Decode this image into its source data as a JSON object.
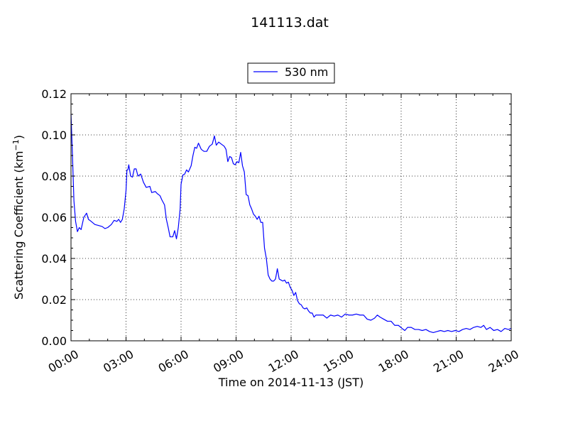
{
  "chart_data": {
    "type": "line",
    "title": "141113.dat",
    "xlabel": "Time on 2014-11-13 (JST)",
    "ylabel": "Scattering Coefficient (km",
    "ylabel_superscript": "−1",
    "ylabel_suffix": ")",
    "x_unit": "hours",
    "xlim": [
      0,
      24
    ],
    "ylim": [
      0,
      0.12
    ],
    "x_ticks": [
      0,
      3,
      6,
      9,
      12,
      15,
      18,
      21,
      24
    ],
    "x_tick_labels": [
      "00:00",
      "03:00",
      "06:00",
      "09:00",
      "12:00",
      "15:00",
      "18:00",
      "21:00",
      "24:00"
    ],
    "y_ticks": [
      0,
      0.02,
      0.04,
      0.06,
      0.08,
      0.1,
      0.12
    ],
    "y_tick_labels": [
      "0.00",
      "0.02",
      "0.04",
      "0.06",
      "0.08",
      "0.10",
      "0.12"
    ],
    "grid": true,
    "legend_position": "top-center-outside",
    "series": [
      {
        "name": "530 nm",
        "color": "#0000ff",
        "points": [
          [
            0.0,
            0.11
          ],
          [
            0.08,
            0.09
          ],
          [
            0.16,
            0.068
          ],
          [
            0.25,
            0.058
          ],
          [
            0.35,
            0.053
          ],
          [
            0.45,
            0.055
          ],
          [
            0.55,
            0.054
          ],
          [
            0.7,
            0.06
          ],
          [
            0.85,
            0.062
          ],
          [
            0.95,
            0.059
          ],
          [
            1.1,
            0.058
          ],
          [
            1.3,
            0.0565
          ],
          [
            1.5,
            0.056
          ],
          [
            1.7,
            0.0555
          ],
          [
            1.85,
            0.0545
          ],
          [
            2.0,
            0.055
          ],
          [
            2.2,
            0.0565
          ],
          [
            2.35,
            0.0585
          ],
          [
            2.5,
            0.058
          ],
          [
            2.6,
            0.059
          ],
          [
            2.7,
            0.0575
          ],
          [
            2.8,
            0.059
          ],
          [
            2.9,
            0.064
          ],
          [
            3.0,
            0.073
          ],
          [
            3.05,
            0.083
          ],
          [
            3.1,
            0.083
          ],
          [
            3.15,
            0.0855
          ],
          [
            3.25,
            0.08
          ],
          [
            3.35,
            0.0795
          ],
          [
            3.45,
            0.0835
          ],
          [
            3.55,
            0.0835
          ],
          [
            3.65,
            0.08
          ],
          [
            3.8,
            0.081
          ],
          [
            3.95,
            0.077
          ],
          [
            4.1,
            0.0745
          ],
          [
            4.3,
            0.075
          ],
          [
            4.4,
            0.072
          ],
          [
            4.6,
            0.0725
          ],
          [
            4.7,
            0.0715
          ],
          [
            4.85,
            0.0705
          ],
          [
            4.95,
            0.0685
          ],
          [
            5.1,
            0.066
          ],
          [
            5.2,
            0.059
          ],
          [
            5.3,
            0.055
          ],
          [
            5.4,
            0.0505
          ],
          [
            5.55,
            0.0505
          ],
          [
            5.65,
            0.0535
          ],
          [
            5.75,
            0.0495
          ],
          [
            5.85,
            0.055
          ],
          [
            5.95,
            0.064
          ],
          [
            6.0,
            0.076
          ],
          [
            6.1,
            0.0805
          ],
          [
            6.2,
            0.081
          ],
          [
            6.3,
            0.083
          ],
          [
            6.4,
            0.082
          ],
          [
            6.55,
            0.085
          ],
          [
            6.65,
            0.09
          ],
          [
            6.75,
            0.094
          ],
          [
            6.85,
            0.0935
          ],
          [
            6.95,
            0.096
          ],
          [
            7.1,
            0.093
          ],
          [
            7.25,
            0.092
          ],
          [
            7.4,
            0.092
          ],
          [
            7.55,
            0.0945
          ],
          [
            7.7,
            0.0955
          ],
          [
            7.82,
            0.0995
          ],
          [
            7.92,
            0.095
          ],
          [
            8.05,
            0.0965
          ],
          [
            8.2,
            0.0955
          ],
          [
            8.35,
            0.0945
          ],
          [
            8.45,
            0.093
          ],
          [
            8.55,
            0.087
          ],
          [
            8.65,
            0.0895
          ],
          [
            8.75,
            0.089
          ],
          [
            8.85,
            0.086
          ],
          [
            8.95,
            0.0855
          ],
          [
            9.05,
            0.087
          ],
          [
            9.15,
            0.0865
          ],
          [
            9.25,
            0.0915
          ],
          [
            9.35,
            0.085
          ],
          [
            9.45,
            0.082
          ],
          [
            9.55,
            0.071
          ],
          [
            9.65,
            0.0705
          ],
          [
            9.75,
            0.066
          ],
          [
            9.85,
            0.064
          ],
          [
            9.95,
            0.0615
          ],
          [
            10.05,
            0.0605
          ],
          [
            10.15,
            0.059
          ],
          [
            10.25,
            0.0605
          ],
          [
            10.35,
            0.0575
          ],
          [
            10.45,
            0.0575
          ],
          [
            10.55,
            0.045
          ],
          [
            10.65,
            0.04
          ],
          [
            10.75,
            0.032
          ],
          [
            10.85,
            0.03
          ],
          [
            10.95,
            0.029
          ],
          [
            11.05,
            0.029
          ],
          [
            11.15,
            0.03
          ],
          [
            11.25,
            0.035
          ],
          [
            11.35,
            0.03
          ],
          [
            11.45,
            0.0295
          ],
          [
            11.55,
            0.029
          ],
          [
            11.65,
            0.0295
          ],
          [
            11.75,
            0.028
          ],
          [
            11.85,
            0.0285
          ],
          [
            11.95,
            0.026
          ],
          [
            12.05,
            0.0245
          ],
          [
            12.15,
            0.022
          ],
          [
            12.25,
            0.0235
          ],
          [
            12.35,
            0.0195
          ],
          [
            12.45,
            0.018
          ],
          [
            12.55,
            0.0175
          ],
          [
            12.65,
            0.016
          ],
          [
            12.75,
            0.0155
          ],
          [
            12.85,
            0.016
          ],
          [
            12.95,
            0.0145
          ],
          [
            13.05,
            0.0135
          ],
          [
            13.15,
            0.0135
          ],
          [
            13.25,
            0.0115
          ],
          [
            13.35,
            0.0125
          ],
          [
            13.55,
            0.0125
          ],
          [
            13.75,
            0.0125
          ],
          [
            13.95,
            0.011
          ],
          [
            14.15,
            0.0125
          ],
          [
            14.35,
            0.012
          ],
          [
            14.55,
            0.0125
          ],
          [
            14.75,
            0.0115
          ],
          [
            14.95,
            0.013
          ],
          [
            15.15,
            0.0125
          ],
          [
            15.35,
            0.0125
          ],
          [
            15.55,
            0.013
          ],
          [
            15.75,
            0.0125
          ],
          [
            15.95,
            0.0125
          ],
          [
            16.15,
            0.0105
          ],
          [
            16.35,
            0.01
          ],
          [
            16.55,
            0.011
          ],
          [
            16.7,
            0.0125
          ],
          [
            16.85,
            0.0115
          ],
          [
            17.05,
            0.0105
          ],
          [
            17.25,
            0.0095
          ],
          [
            17.45,
            0.0095
          ],
          [
            17.65,
            0.0075
          ],
          [
            17.85,
            0.0075
          ],
          [
            18.05,
            0.006
          ],
          [
            18.2,
            0.005
          ],
          [
            18.35,
            0.0065
          ],
          [
            18.55,
            0.0065
          ],
          [
            18.75,
            0.0055
          ],
          [
            18.95,
            0.0055
          ],
          [
            19.15,
            0.005
          ],
          [
            19.35,
            0.0055
          ],
          [
            19.55,
            0.0045
          ],
          [
            19.75,
            0.004
          ],
          [
            19.95,
            0.0045
          ],
          [
            20.15,
            0.005
          ],
          [
            20.35,
            0.0045
          ],
          [
            20.55,
            0.005
          ],
          [
            20.75,
            0.0045
          ],
          [
            20.95,
            0.005
          ],
          [
            21.15,
            0.0045
          ],
          [
            21.35,
            0.0055
          ],
          [
            21.55,
            0.006
          ],
          [
            21.75,
            0.0055
          ],
          [
            21.95,
            0.0065
          ],
          [
            22.15,
            0.007
          ],
          [
            22.35,
            0.0065
          ],
          [
            22.5,
            0.0075
          ],
          [
            22.65,
            0.0055
          ],
          [
            22.85,
            0.0065
          ],
          [
            23.05,
            0.005
          ],
          [
            23.25,
            0.0055
          ],
          [
            23.45,
            0.0045
          ],
          [
            23.65,
            0.006
          ],
          [
            23.85,
            0.0055
          ],
          [
            24.0,
            0.006
          ]
        ]
      }
    ]
  }
}
